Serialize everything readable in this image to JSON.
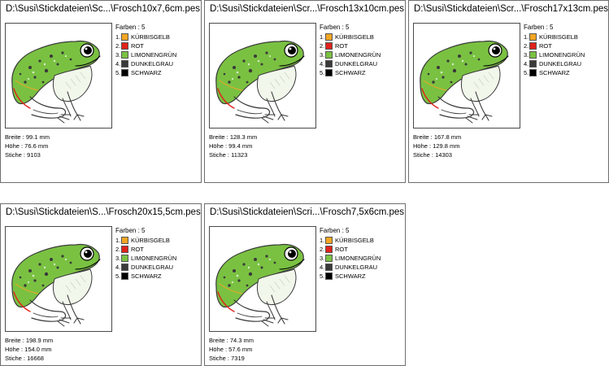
{
  "palette_header": "Farben : 5",
  "colors": [
    {
      "num": "1.",
      "name": "KÜRBISGELB",
      "hex": "#f4a623"
    },
    {
      "num": "2.",
      "name": "ROT",
      "hex": "#e0221b"
    },
    {
      "num": "3.",
      "name": "LIMONENGRÜN",
      "hex": "#7ac142"
    },
    {
      "num": "4.",
      "name": "DUNKELGRAU",
      "hex": "#3a3a3a"
    },
    {
      "num": "5.",
      "name": "SCHWARZ",
      "hex": "#000000"
    }
  ],
  "designs": [
    {
      "title": "D:\\Susi\\Stickdateien\\Sc...\\Frosch10x7,6cm.pes",
      "breite": "Breite : 99.1 mm",
      "hoehe": "Höhe : 76.6 mm",
      "stiche": "Stiche : 9103"
    },
    {
      "title": "D:\\Susi\\Stickdateien\\Scr...\\Frosch13x10cm.pes",
      "breite": "Breite : 128.3 mm",
      "hoehe": "Höhe : 99.4 mm",
      "stiche": "Stiche : 11323"
    },
    {
      "title": "D:\\Susi\\Stickdateien\\Scr...\\Frosch17x13cm.pes",
      "breite": "Breite : 167.8 mm",
      "hoehe": "Höhe : 129.8 mm",
      "stiche": "Stiche : 14303"
    },
    {
      "title": "D:\\Susi\\Stickdateien\\S...\\Frosch20x15,5cm.pes",
      "breite": "Breite : 198.9 mm",
      "hoehe": "Höhe : 154.0 mm",
      "stiche": "Stiche : 16668"
    },
    {
      "title": "D:\\Susi\\Stickdateien\\Scri...\\Frosch7,5x6cm.pes",
      "breite": "Breite : 74.3 mm",
      "hoehe": "Höhe : 57.6 mm",
      "stiche": "Stiche : 7319"
    }
  ]
}
